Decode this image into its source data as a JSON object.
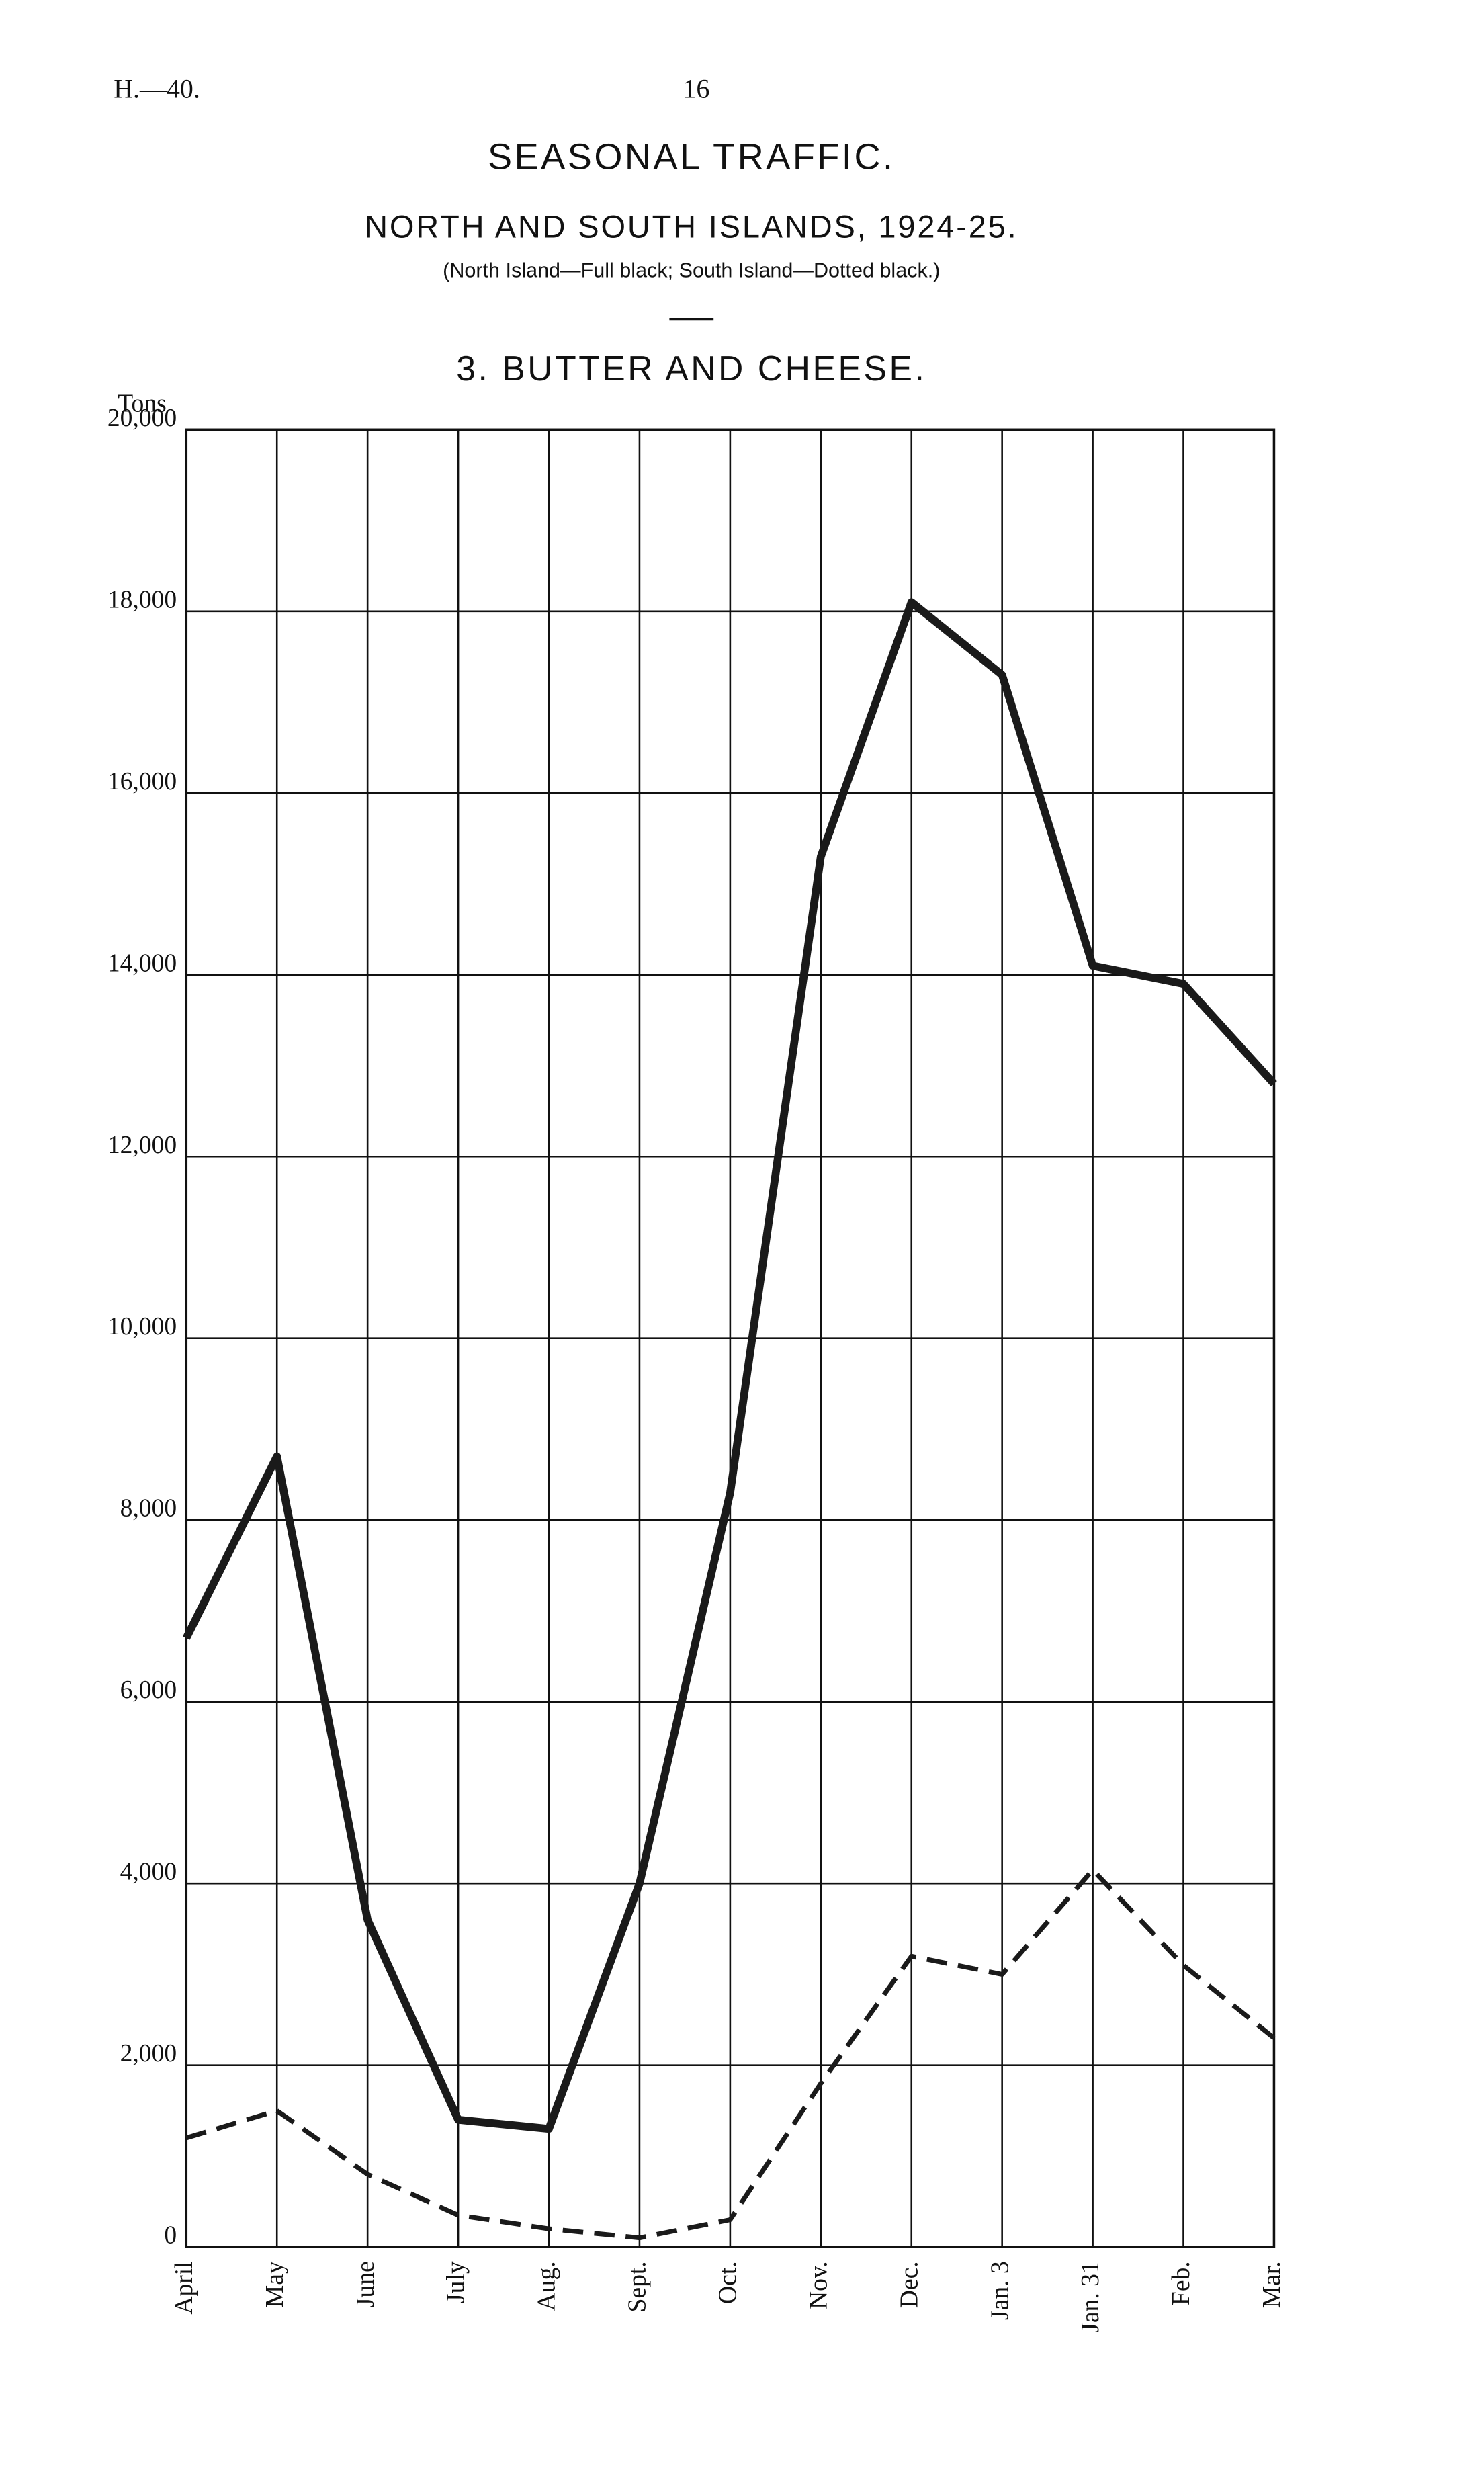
{
  "header": {
    "reference": "H.—40.",
    "page_number": "16"
  },
  "chart_data": {
    "type": "line",
    "title": "SEASONAL TRAFFIC.",
    "subtitle": "NORTH AND SOUTH ISLANDS, 1924-25.",
    "note": "(North Island—Full black; South Island—Dotted black.)",
    "heading": "3. BUTTER AND CHEESE.",
    "y_label": "Tons",
    "categories": [
      "April",
      "May",
      "June",
      "July",
      "Aug.",
      "Sept.",
      "Oct.",
      "Nov.",
      "Dec.",
      "Jan. 3",
      "Jan. 31",
      "Feb.",
      "Mar."
    ],
    "series": [
      {
        "color": "#1a1a1a",
        "dashed": false,
        "values": [
          6700,
          8700,
          3600,
          1400,
          1300,
          4000,
          8300,
          15300,
          18100,
          17300,
          14100,
          13900,
          12800
        ]
      },
      {
        "color": "#1a1a1a",
        "dashed": true,
        "values": [
          1200,
          1500,
          800,
          350,
          200,
          100,
          300,
          1800,
          3200,
          3000,
          4150,
          3100,
          2300
        ]
      }
    ],
    "ylim": [
      0,
      20000
    ],
    "yticks": [
      0,
      {
        "value": 2000,
        "label": "2,000"
      },
      {
        "value": 4000,
        "label": "4,000"
      },
      {
        "value": 6000,
        "label": "6,000"
      },
      {
        "value": 8000,
        "label": "8,000"
      },
      {
        "value": 10000,
        "label": "10,000"
      },
      {
        "value": 12000,
        "label": "12,000"
      },
      {
        "value": 14000,
        "label": "14,000"
      },
      {
        "value": 16000,
        "label": "16,000"
      },
      {
        "value": 18000,
        "label": "18,000"
      },
      {
        "value": 20000,
        "label": "20,000"
      }
    ],
    "grid": true
  }
}
